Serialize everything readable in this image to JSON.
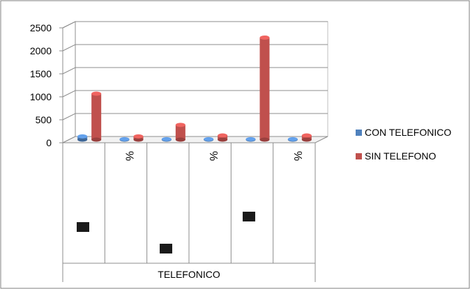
{
  "chart_data": {
    "type": "bar",
    "categories": [
      "",
      "%",
      "",
      "%",
      "",
      "%"
    ],
    "series": [
      {
        "name": "CON TELEFONICO",
        "color": "#4F81BD",
        "values": [
          70,
          10,
          10,
          10,
          10,
          10
        ]
      },
      {
        "name": "SIN TELEFONO",
        "color": "#C0504D",
        "values": [
          1000,
          70,
          320,
          90,
          2220,
          90
        ]
      }
    ],
    "y_ticks": [
      "0",
      "500",
      "1000",
      "1500",
      "2000",
      "2500"
    ],
    "ylim": [
      0,
      2500
    ],
    "grid": true,
    "legend_position": "right",
    "group_label": "TELEFONICO",
    "group_markers": [
      "",
      "",
      ""
    ]
  }
}
